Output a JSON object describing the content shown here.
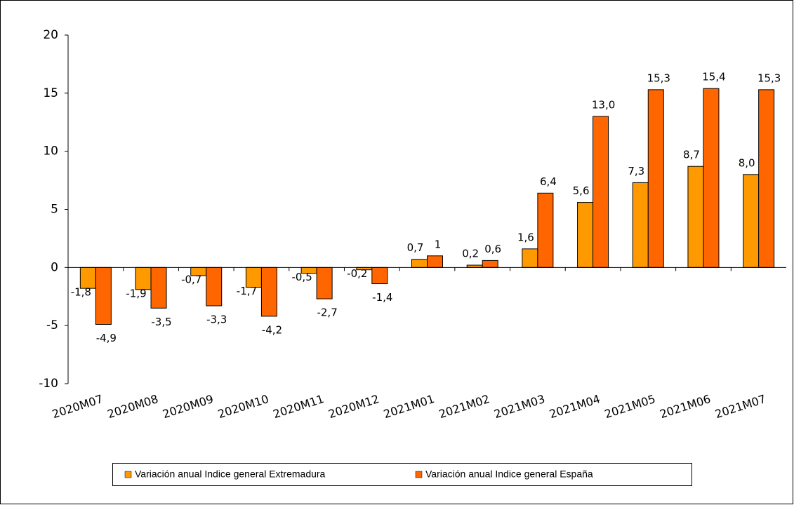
{
  "chart_data": {
    "type": "bar",
    "categories": [
      "2020M07",
      "2020M08",
      "2020M09",
      "2020M10",
      "2020M11",
      "2020M12",
      "2021M01",
      "2021M02",
      "2021M03",
      "2021M04",
      "2021M05",
      "2021M06",
      "2021M07"
    ],
    "series": [
      {
        "name": "Variación anual Indice general Extremadura",
        "color": "#ff9900",
        "values": [
          -1.8,
          -1.9,
          -0.7,
          -1.7,
          -0.5,
          -0.2,
          0.7,
          0.2,
          1.6,
          5.6,
          7.3,
          8.7,
          8.0
        ],
        "value_labels": [
          "-1,8",
          "-1,9",
          "-0,7",
          "-1,7",
          "-0,5",
          "-0,2",
          "0,7",
          "0,2",
          "1,6",
          "5,6",
          "7,3",
          "8,7",
          "8,0"
        ]
      },
      {
        "name": "Variación anual Indice general España",
        "color": "#ff6600",
        "values": [
          -4.9,
          -3.5,
          -3.3,
          -4.2,
          -2.7,
          -1.4,
          1,
          0.6,
          6.4,
          13.0,
          15.3,
          15.4,
          15.3
        ],
        "value_labels": [
          "-4,9",
          "-3,5",
          "-3,3",
          "-4,2",
          "-2,7",
          "-1,4",
          "1",
          "0,6",
          "6,4",
          "13,0",
          "15,3",
          "15,4",
          "15,3"
        ]
      }
    ],
    "ylim": [
      -10,
      20
    ],
    "yticks": [
      -10,
      -5,
      0,
      5,
      10,
      15,
      20
    ],
    "grid": false,
    "legend": "bottom"
  }
}
